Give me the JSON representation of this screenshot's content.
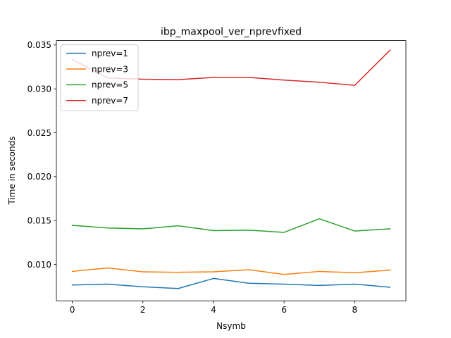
{
  "chart_data": {
    "type": "line",
    "title": "ibp_maxpool_ver_nprevfixed",
    "xlabel": "Nsymb",
    "ylabel": "Time in seconds",
    "xlim": [
      -0.45,
      9.45
    ],
    "ylim": [
      0.00585,
      0.0355
    ],
    "xticks": [
      0,
      2,
      4,
      6,
      8
    ],
    "xtick_labels": [
      "0",
      "2",
      "4",
      "6",
      "8"
    ],
    "yticks": [
      0.01,
      0.015,
      0.02,
      0.025,
      0.03,
      0.035
    ],
    "ytick_labels": [
      "0.010",
      "0.015",
      "0.020",
      "0.025",
      "0.030",
      "0.035"
    ],
    "grid": false,
    "legend_position": "upper-left",
    "x": [
      0,
      1,
      2,
      3,
      4,
      5,
      6,
      7,
      8,
      9
    ],
    "series": [
      {
        "name": "nprev=1",
        "color": "#1f77b4",
        "values": [
          0.00765,
          0.00775,
          0.00745,
          0.00725,
          0.0084,
          0.00785,
          0.00775,
          0.0076,
          0.00775,
          0.0074
        ]
      },
      {
        "name": "nprev=3",
        "color": "#ff7f0e",
        "values": [
          0.0092,
          0.0096,
          0.00915,
          0.0091,
          0.00915,
          0.0094,
          0.00885,
          0.0092,
          0.00905,
          0.00935
        ]
      },
      {
        "name": "nprev=5",
        "color": "#2ca02c",
        "values": [
          0.01445,
          0.01415,
          0.01405,
          0.0144,
          0.01385,
          0.0139,
          0.01365,
          0.0152,
          0.0138,
          0.01405
        ]
      },
      {
        "name": "nprev=7",
        "color": "#d62728",
        "values": [
          0.03335,
          0.03125,
          0.0311,
          0.03105,
          0.0313,
          0.0313,
          0.031,
          0.03075,
          0.0304,
          0.0344
        ]
      }
    ]
  }
}
